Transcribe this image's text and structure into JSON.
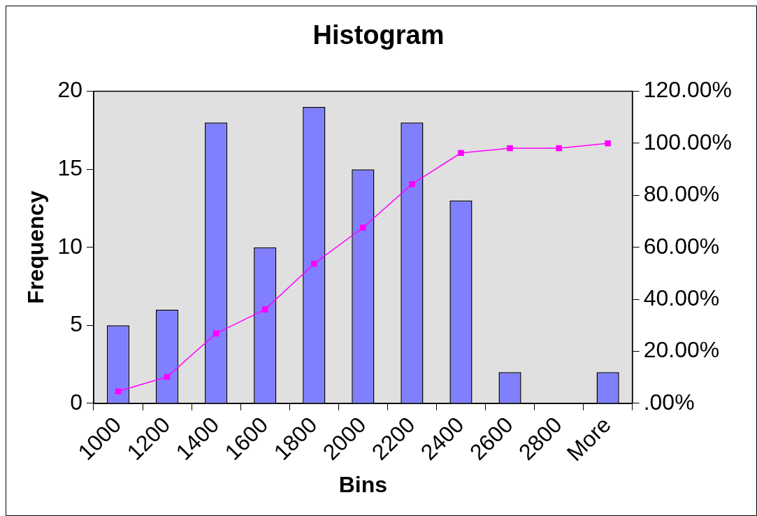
{
  "chart_data": {
    "type": "bar",
    "title": "Histogram",
    "xlabel": "Bins",
    "ylabel": "Frequency",
    "categories": [
      "1000",
      "1200",
      "1400",
      "1600",
      "1800",
      "2000",
      "2200",
      "2400",
      "2600",
      "2800",
      "More"
    ],
    "series": [
      {
        "color": "#8080ff",
        "values": [
          5,
          6,
          18,
          10,
          19,
          15,
          18,
          13,
          2,
          0,
          2
        ]
      },
      {
        "type": "line",
        "axis": "y2",
        "color": "#ff00ff",
        "values": [
          4.6,
          10.2,
          26.9,
          36.1,
          53.7,
          67.6,
          84.3,
          96.3,
          98.1,
          98.1,
          100
        ]
      }
    ],
    "ylim": [
      0,
      20
    ],
    "yticks": [
      0,
      5,
      10,
      15,
      20
    ],
    "y2lim": [
      0,
      120
    ],
    "y2ticks": [
      {
        "value": 0,
        "label": ".00%"
      },
      {
        "value": 20,
        "label": "20.00%"
      },
      {
        "value": 40,
        "label": "40.00%"
      },
      {
        "value": 60,
        "label": "60.00%"
      },
      {
        "value": 80,
        "label": "80.00%"
      },
      {
        "value": 100,
        "label": "100.00%"
      },
      {
        "value": 120,
        "label": "120.00%"
      }
    ],
    "marker": "square",
    "grid": false,
    "legend": false
  }
}
